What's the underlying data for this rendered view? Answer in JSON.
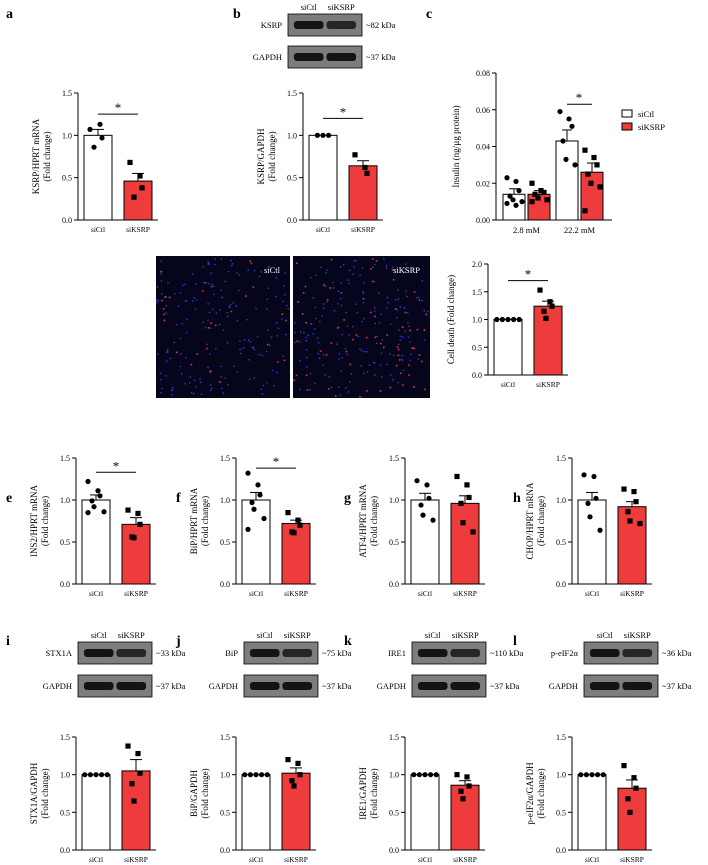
{
  "colors": {
    "ctl": "#ffffff",
    "ksrp": "#ee3b3b",
    "stroke": "#000000"
  },
  "panels": {
    "a": {
      "letter": "a",
      "ylabel1": "KSRP/HPRT mRNA",
      "ylabel2": "(Fold change)",
      "sig": "*"
    },
    "b": {
      "letter": "b",
      "ylabel1": "KSRP/GAPDH",
      "ylabel2": "(Fold change)",
      "sig": "*",
      "blot": {
        "lanes": [
          "siCtl",
          "siKSRP"
        ],
        "bands": [
          {
            "name": "KSRP",
            "size": "~82 kDa"
          },
          {
            "name": "GAPDH",
            "size": "~37 kDa"
          }
        ]
      }
    },
    "c": {
      "letter": "c",
      "ylabel": "Insulin (ng/µg protein)",
      "sig": "*",
      "legend": [
        "siCtl",
        "siKSRP"
      ]
    },
    "d": {
      "letter": "d",
      "ylabel1": "Cell death (Fold change)",
      "sig": "*",
      "img_labels": [
        "siCtl",
        "siKSRP"
      ]
    },
    "e": {
      "letter": "e",
      "ylabel1": "INS2/HPRT mRNA",
      "ylabel2": "(Fold change)",
      "sig": "*"
    },
    "f": {
      "letter": "f",
      "ylabel1": "BiP/HPRT mRNA",
      "ylabel2": "(Fold change)",
      "sig": "*"
    },
    "g": {
      "letter": "g",
      "ylabel1": "ATF4/HPRT mRNA",
      "ylabel2": "(Fold change)"
    },
    "h": {
      "letter": "h",
      "ylabel1": "CHOP/HPRT mRNA",
      "ylabel2": "(Fold change)"
    },
    "i": {
      "letter": "i",
      "ylabel1": "STX1A/GAPDH",
      "ylabel2": "(Fold change)",
      "blot": {
        "lanes": [
          "siCtl",
          "siKSRP"
        ],
        "bands": [
          {
            "name": "STX1A",
            "size": "~33 kDa"
          },
          {
            "name": "GAPDH",
            "size": "~37 kDa"
          }
        ]
      }
    },
    "j": {
      "letter": "j",
      "ylabel1": "BiP/GAPDH",
      "ylabel2": "(Fold change)",
      "blot": {
        "lanes": [
          "siCtl",
          "siKSRP"
        ],
        "bands": [
          {
            "name": "BiP",
            "size": "~75 kDa"
          },
          {
            "name": "GAPDH",
            "size": "~37 kDa"
          }
        ]
      }
    },
    "k": {
      "letter": "k",
      "ylabel1": "IRE1/GAPDH",
      "ylabel2": "(Fold change)",
      "blot": {
        "lanes": [
          "siCtl",
          "siKSRP"
        ],
        "bands": [
          {
            "name": "IRE1",
            "size": "~110 kDa"
          },
          {
            "name": "GAPDH",
            "size": "~37 kDa"
          }
        ]
      }
    },
    "l": {
      "letter": "l",
      "ylabel1": "p-eIF2α/GAPDH",
      "ylabel2": "(Fold change)",
      "blot": {
        "lanes": [
          "siCtl",
          "siKSRP"
        ],
        "bands": [
          {
            "name": "p-eIF2α",
            "size": "~36 kDa"
          },
          {
            "name": "GAPDH",
            "size": "~37 kDa"
          }
        ]
      }
    }
  },
  "chart_data": [
    {
      "panel": "a",
      "type": "bar",
      "categories": [
        "siCtl",
        "siKSRP"
      ],
      "ylim": [
        0,
        1.5
      ],
      "yticks": [
        "0.0",
        "0.5",
        "1.0",
        "1.5"
      ],
      "values": [
        1.0,
        0.46
      ],
      "errors": [
        0.07,
        0.09
      ],
      "points": [
        [
          1.07,
          1.13,
          0.97,
          0.86
        ],
        [
          0.68,
          0.52,
          0.38,
          0.27
        ]
      ],
      "sig": [
        0,
        1
      ]
    },
    {
      "panel": "b",
      "type": "bar",
      "categories": [
        "siCtl",
        "siKSRP"
      ],
      "ylim": [
        0,
        1.5
      ],
      "yticks": [
        "0.0",
        "0.5",
        "1.0",
        "1.5"
      ],
      "values": [
        1.0,
        0.64
      ],
      "errors": [
        0,
        0.06
      ],
      "points": [
        [
          1.0,
          1.0,
          1.0
        ],
        [
          0.77,
          0.62,
          0.55
        ]
      ],
      "sig": [
        0,
        1
      ]
    },
    {
      "panel": "c",
      "type": "bar",
      "categories": [
        "2.8 mM",
        "22.2 mM"
      ],
      "series_names": [
        "siCtl",
        "siKSRP"
      ],
      "ylim": [
        0,
        0.08
      ],
      "yticks": [
        "0.00",
        "0.02",
        "0.04",
        "0.06",
        "0.08"
      ],
      "values": [
        [
          0.014,
          0.014
        ],
        [
          0.043,
          0.026
        ]
      ],
      "errors": [
        [
          0.003,
          0.002
        ],
        [
          0.006,
          0.005
        ]
      ],
      "points": [
        [
          [
            0.023,
            0.021,
            0.016,
            0.013,
            0.011,
            0.01,
            0.009,
            0.008
          ],
          [
            0.02,
            0.016,
            0.015,
            0.014,
            0.012,
            0.011,
            0.01
          ]
        ],
        [
          [
            0.059,
            0.055,
            0.051,
            0.043,
            0.033,
            0.03
          ],
          [
            0.038,
            0.034,
            0.03,
            0.025,
            0.02,
            0.018,
            0.005
          ]
        ]
      ],
      "sig": [
        1,
        0,
        1,
        1
      ]
    },
    {
      "panel": "d",
      "type": "bar",
      "categories": [
        "siCtl",
        "siKSRP"
      ],
      "ylim": [
        0,
        2.0
      ],
      "yticks": [
        "0.0",
        "0.5",
        "1.0",
        "1.5",
        "2.0"
      ],
      "values": [
        1.0,
        1.24
      ],
      "errors": [
        0,
        0.09
      ],
      "points": [
        [
          1.0,
          1.0,
          1.0,
          1.0,
          1.0
        ],
        [
          1.53,
          1.32,
          1.24,
          1.15,
          1.02
        ]
      ],
      "sig": [
        0,
        1
      ]
    },
    {
      "panel": "e",
      "type": "bar",
      "categories": [
        "siCtl",
        "siKSRP"
      ],
      "ylim": [
        0,
        1.5
      ],
      "yticks": [
        "0.0",
        "0.5",
        "1.0",
        "1.5"
      ],
      "values": [
        1.0,
        0.71
      ],
      "errors": [
        0.06,
        0.08
      ],
      "points": [
        [
          1.22,
          1.11,
          1.05,
          0.99,
          0.92,
          0.86,
          0.85
        ],
        [
          0.88,
          0.84,
          0.71,
          0.56,
          0.55
        ]
      ],
      "sig": [
        0,
        1
      ]
    },
    {
      "panel": "f",
      "type": "bar",
      "categories": [
        "siCtl",
        "siKSRP"
      ],
      "ylim": [
        0,
        1.5
      ],
      "yticks": [
        "0.0",
        "0.5",
        "1.0",
        "1.5"
      ],
      "values": [
        1.0,
        0.72
      ],
      "errors": [
        0.09,
        0.04
      ],
      "points": [
        [
          1.32,
          1.18,
          1.06,
          0.97,
          0.89,
          0.78,
          0.65
        ],
        [
          0.85,
          0.76,
          0.7,
          0.62,
          0.61
        ]
      ],
      "sig": [
        0,
        1
      ]
    },
    {
      "panel": "g",
      "type": "bar",
      "categories": [
        "siCtl",
        "siKSRP"
      ],
      "ylim": [
        0,
        1.5
      ],
      "yticks": [
        "0.0",
        "0.5",
        "1.0",
        "1.5"
      ],
      "values": [
        1.0,
        0.96
      ],
      "errors": [
        0.08,
        0.09
      ],
      "points": [
        [
          1.23,
          1.18,
          1.02,
          0.94,
          0.82,
          0.76
        ],
        [
          1.28,
          1.18,
          1.03,
          0.96,
          0.73,
          0.62
        ]
      ]
    },
    {
      "panel": "h",
      "type": "bar",
      "categories": [
        "siCtl",
        "siKSRP"
      ],
      "ylim": [
        0,
        1.5
      ],
      "yticks": [
        "0.0",
        "0.5",
        "1.0",
        "1.5"
      ],
      "values": [
        1.0,
        0.92
      ],
      "errors": [
        0.09,
        0.06
      ],
      "points": [
        [
          1.3,
          1.28,
          1.02,
          0.96,
          0.8,
          0.64
        ],
        [
          1.13,
          1.1,
          0.98,
          0.86,
          0.75,
          0.72
        ]
      ]
    },
    {
      "panel": "i",
      "type": "bar",
      "categories": [
        "siCtl",
        "siKSRP"
      ],
      "ylim": [
        0,
        1.5
      ],
      "yticks": [
        "0.0",
        "0.5",
        "1.0",
        "1.5"
      ],
      "values": [
        1.0,
        1.05
      ],
      "errors": [
        0,
        0.15
      ],
      "points": [
        [
          1.0,
          1.0,
          1.0,
          1.0,
          1.0
        ],
        [
          1.38,
          1.28,
          1.02,
          0.88,
          0.65
        ]
      ]
    },
    {
      "panel": "j",
      "type": "bar",
      "categories": [
        "siCtl",
        "siKSRP"
      ],
      "ylim": [
        0,
        1.5
      ],
      "yticks": [
        "0.0",
        "0.5",
        "1.0",
        "1.5"
      ],
      "values": [
        1.0,
        1.02
      ],
      "errors": [
        0,
        0.07
      ],
      "points": [
        [
          1.0,
          1.0,
          1.0,
          1.0,
          1.0
        ],
        [
          1.2,
          1.15,
          1.0,
          0.92,
          0.85
        ]
      ]
    },
    {
      "panel": "k",
      "type": "bar",
      "categories": [
        "siCtl",
        "siKSRP"
      ],
      "ylim": [
        0,
        1.5
      ],
      "yticks": [
        "0.0",
        "0.5",
        "1.0",
        "1.5"
      ],
      "values": [
        1.0,
        0.86
      ],
      "errors": [
        0,
        0.06
      ],
      "points": [
        [
          1.0,
          1.0,
          1.0,
          1.0,
          1.0
        ],
        [
          1.0,
          0.97,
          0.85,
          0.78,
          0.68
        ]
      ]
    },
    {
      "panel": "l",
      "type": "bar",
      "categories": [
        "siCtl",
        "siKSRP"
      ],
      "ylim": [
        0,
        1.5
      ],
      "yticks": [
        "0.0",
        "0.5",
        "1.0",
        "1.5"
      ],
      "values": [
        1.0,
        0.82
      ],
      "errors": [
        0,
        0.11
      ],
      "points": [
        [
          1.0,
          1.0,
          1.0,
          1.0,
          1.0
        ],
        [
          1.12,
          0.96,
          0.82,
          0.68,
          0.5
        ]
      ]
    }
  ]
}
